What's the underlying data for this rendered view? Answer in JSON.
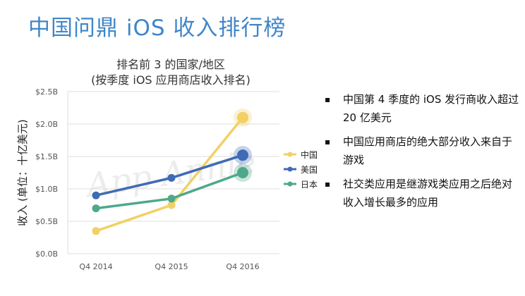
{
  "slide": {
    "title": "中国问鼎 iOS 收入排行榜"
  },
  "chart_data": {
    "type": "line",
    "title": "排名前 3 的国家/地区",
    "subtitle": "(按季度 iOS 应用商店收入排名)",
    "xlabel": "",
    "ylabel": "收入 (单位：十亿美元)",
    "categories": [
      "Q4 2014",
      "Q4 2015",
      "Q4 2016"
    ],
    "yticks": [
      "$0.0B",
      "$0.5B",
      "$1.0B",
      "$1.5B",
      "$2.0B",
      "$2.5B"
    ],
    "ylim": [
      0,
      2.5
    ],
    "grid": true,
    "legend_position": "right",
    "series": [
      {
        "name": "中国",
        "color": "#f2d064",
        "values": [
          0.35,
          0.75,
          2.1
        ]
      },
      {
        "name": "美国",
        "color": "#3f6bb5",
        "values": [
          0.9,
          1.17,
          1.52
        ]
      },
      {
        "name": "日本",
        "color": "#4fa88b",
        "values": [
          0.7,
          0.85,
          1.25
        ]
      }
    ],
    "watermark": "App Annie"
  },
  "bullets": [
    "中国第 4 季度的 iOS 发行商收入超过 20 亿美元",
    "中国应用商店的绝大部分收入来自于游戏",
    "社交类应用是继游戏类应用之后绝对收入增长最多的应用"
  ],
  "bullet_marker": "▪"
}
